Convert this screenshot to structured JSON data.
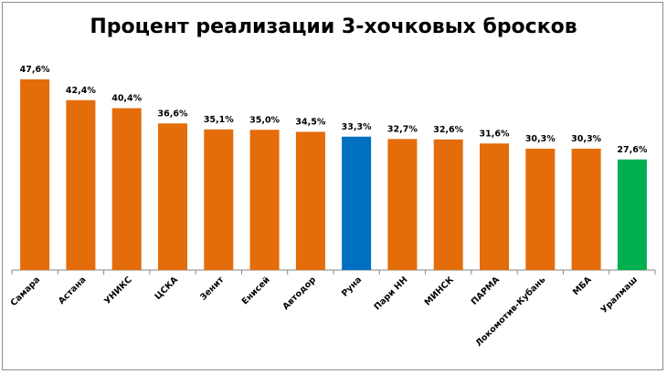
{
  "chart_data": {
    "type": "bar",
    "title": "Процент реализации 3-хочковых бросков",
    "xlabel": "",
    "ylabel": "",
    "ylim": [
      0,
      47.6
    ],
    "grid": false,
    "legend": "none",
    "categories": [
      "Самара",
      "Астана",
      "УНИКС",
      "ЦСКА",
      "Зенит",
      "Енисей",
      "Автодор",
      "Руна",
      "Пари НН",
      "МИНСК",
      "ПАРМА",
      "Локомотив-Кубань",
      "МБА",
      "Уралмаш"
    ],
    "values": [
      47.6,
      42.4,
      40.4,
      36.6,
      35.1,
      35.0,
      34.5,
      33.3,
      32.7,
      32.6,
      31.6,
      30.3,
      30.3,
      27.6
    ],
    "value_labels": [
      "47,6%",
      "42,4%",
      "40,4%",
      "36,6%",
      "35,1%",
      "35,0%",
      "34,5%",
      "33,3%",
      "32,7%",
      "32,6%",
      "31,6%",
      "30,3%",
      "30,3%",
      "27,6%"
    ],
    "colors": {
      "default": "#e46c0a",
      "Руна": "#0070c0",
      "Уралмаш": "#00b050",
      "axis": "#868686"
    }
  }
}
